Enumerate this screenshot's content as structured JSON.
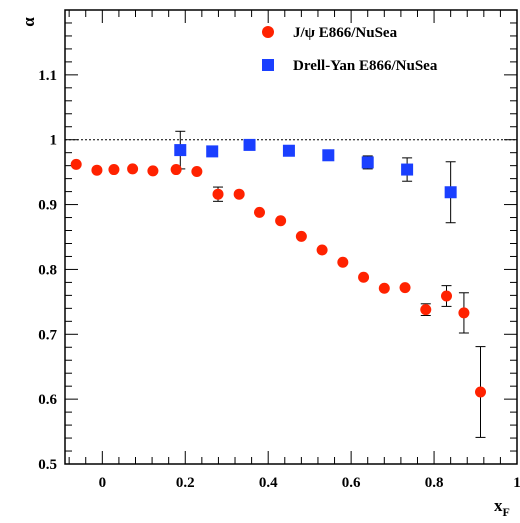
{
  "chart_data": {
    "type": "scatter",
    "title": "",
    "xlabel": "x",
    "xlabel_sub": "F",
    "ylabel": "α",
    "xlim": [
      -0.09,
      1.0
    ],
    "ylim": [
      0.5,
      1.2
    ],
    "x_ticks": [
      0,
      0.2,
      0.4,
      0.6,
      0.8,
      1
    ],
    "x_tick_labels": [
      "0",
      "0.2",
      "0.4",
      "0.6",
      "0.8",
      "1"
    ],
    "y_ticks": [
      0.5,
      0.6,
      0.7,
      0.8,
      0.9,
      1.0,
      1.1
    ],
    "y_tick_labels": [
      "0.5",
      "0.6",
      "0.7",
      "0.8",
      "0.9",
      "1",
      "1.1"
    ],
    "reference_line": {
      "y": 1.0,
      "style": "dotted"
    },
    "grid": false,
    "legend_position": "top-right",
    "series": [
      {
        "name": "J/ψ E866/NuSea",
        "marker": "circle",
        "color": "#ff2200",
        "points": [
          {
            "x": -0.063,
            "y": 0.962
          },
          {
            "x": -0.013,
            "y": 0.953
          },
          {
            "x": 0.028,
            "y": 0.954
          },
          {
            "x": 0.073,
            "y": 0.955
          },
          {
            "x": 0.122,
            "y": 0.952
          },
          {
            "x": 0.178,
            "y": 0.954
          },
          {
            "x": 0.228,
            "y": 0.951
          },
          {
            "x": 0.279,
            "y": 0.916,
            "err": 0.011
          },
          {
            "x": 0.33,
            "y": 0.916
          },
          {
            "x": 0.379,
            "y": 0.888
          },
          {
            "x": 0.43,
            "y": 0.875
          },
          {
            "x": 0.48,
            "y": 0.851
          },
          {
            "x": 0.53,
            "y": 0.83
          },
          {
            "x": 0.58,
            "y": 0.811
          },
          {
            "x": 0.63,
            "y": 0.788
          },
          {
            "x": 0.68,
            "y": 0.771
          },
          {
            "x": 0.73,
            "y": 0.772
          },
          {
            "x": 0.78,
            "y": 0.738,
            "err": 0.009
          },
          {
            "x": 0.83,
            "y": 0.759,
            "err": 0.016
          },
          {
            "x": 0.872,
            "y": 0.733,
            "err": 0.031
          },
          {
            "x": 0.912,
            "y": 0.611,
            "err": 0.07
          }
        ]
      },
      {
        "name": "Drell-Yan E866/NuSea",
        "marker": "square",
        "color": "#1a3fff",
        "points": [
          {
            "x": 0.188,
            "y": 0.984,
            "err": 0.029
          },
          {
            "x": 0.265,
            "y": 0.982
          },
          {
            "x": 0.355,
            "y": 0.992
          },
          {
            "x": 0.45,
            "y": 0.983
          },
          {
            "x": 0.545,
            "y": 0.976
          },
          {
            "x": 0.64,
            "y": 0.965,
            "err": 0.01
          },
          {
            "x": 0.735,
            "y": 0.954,
            "err": 0.018
          },
          {
            "x": 0.84,
            "y": 0.919,
            "err": 0.047
          }
        ]
      }
    ]
  }
}
